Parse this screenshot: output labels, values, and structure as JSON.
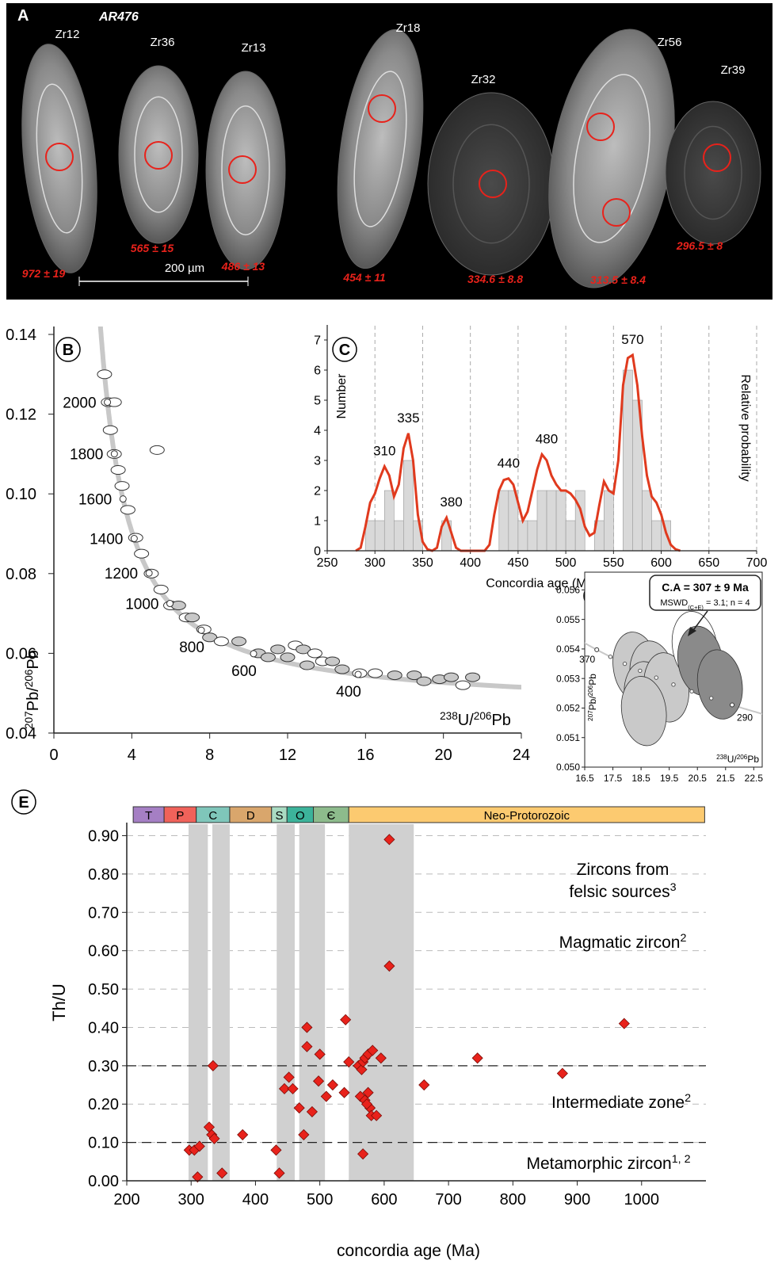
{
  "panel_a": {
    "label": "A",
    "sample": "AR476",
    "scale_bar": "200 µm",
    "grains": [
      {
        "name": "Zr12",
        "age": "972 ± 19"
      },
      {
        "name": "Zr36",
        "age": "565 ± 15"
      },
      {
        "name": "Zr13",
        "age": "486 ± 13"
      },
      {
        "name": "Zr18",
        "age": "454 ± 11"
      },
      {
        "name": "Zr32",
        "age": "334.6 ± 8.8"
      },
      {
        "name": "Zr56",
        "age": "313.5 ± 8.4"
      },
      {
        "name": "Zr39",
        "age": "296.5 ± 8"
      }
    ]
  },
  "chart_data": [
    {
      "type": "concordia",
      "label": "B",
      "xlabel": [
        "238",
        "U/",
        "206",
        "Pb"
      ],
      "ylabel": [
        "207",
        "Pb/",
        "206",
        "Pb"
      ],
      "xlim": [
        0,
        24
      ],
      "xticks": [
        0,
        4,
        8,
        12,
        16,
        20,
        24
      ],
      "ylim": [
        0.04,
        0.14
      ],
      "yticks": [
        0.04,
        0.06,
        0.08,
        {
          "value": 0.1,
          "label": "0.10"
        },
        0.12,
        0.14
      ],
      "concordia_ages": [
        2000,
        1800,
        1600,
        1400,
        1200,
        1000,
        800,
        600,
        400
      ],
      "x": [
        2.6,
        2.8,
        3.1,
        2.9,
        3.1,
        3.3,
        3.5,
        3.8,
        4.2,
        4.5,
        5.3,
        5.0,
        5.5,
        6.0,
        6.4,
        6.8,
        7.1,
        7.7,
        8.0,
        8.6,
        9.5,
        10.5,
        11.0,
        11.5,
        12.0,
        12.4,
        12.8,
        13.0,
        13.4,
        13.8,
        14.3,
        14.8,
        15.7,
        16.5,
        17.5,
        18.5,
        19.0,
        19.8,
        20.4,
        21.0,
        21.5
      ],
      "values": [
        0.13,
        0.123,
        0.123,
        0.116,
        0.11,
        0.106,
        0.102,
        0.096,
        0.089,
        0.085,
        0.111,
        0.08,
        0.076,
        0.072,
        0.072,
        0.069,
        0.069,
        0.066,
        0.064,
        0.063,
        0.063,
        0.06,
        0.059,
        0.061,
        0.059,
        0.062,
        0.061,
        0.057,
        0.06,
        0.058,
        0.058,
        0.056,
        0.055,
        0.055,
        0.0545,
        0.0545,
        0.053,
        0.0535,
        0.054,
        0.052,
        0.054
      ],
      "colors": [
        "#ffffff",
        "#ffffff",
        "#ffffff",
        "#ffffff",
        "#ffffff",
        "#ffffff",
        "#ffffff",
        "#ffffff",
        "#ffffff",
        "#ffffff",
        "#ffffff",
        "#ffffff",
        "#ffffff",
        "#ffffff",
        "#c8c8c8",
        "#ffffff",
        "#c8c8c8",
        "#ffffff",
        "#c8c8c8",
        "#ffffff",
        "#c8c8c8",
        "#c8c8c8",
        "#c8c8c8",
        "#c8c8c8",
        "#c8c8c8",
        "#ffffff",
        "#c8c8c8",
        "#c8c8c8",
        "#ffffff",
        "#ffffff",
        "#c8c8c8",
        "#c8c8c8",
        "#ffffff",
        "#ffffff",
        "#c8c8c8",
        "#c8c8c8",
        "#c8c8c8",
        "#c8c8c8",
        "#c8c8c8",
        "#ffffff",
        "#c8c8c8"
      ]
    },
    {
      "type": "histogram",
      "label": "C",
      "xlabel": "Concordia age (Ma)",
      "ylabel": "Number",
      "y2label": "Relative probability",
      "xlim": [
        250,
        700
      ],
      "xticks": [
        250,
        300,
        350,
        400,
        450,
        500,
        550,
        600,
        650,
        700
      ],
      "ylim": [
        0,
        7.5
      ],
      "yticks": [
        0,
        1,
        2,
        3,
        4,
        5,
        6,
        7
      ],
      "bins": [
        290,
        300,
        310,
        320,
        330,
        340,
        350,
        360,
        370,
        380,
        390,
        400,
        410,
        420,
        430,
        440,
        450,
        460,
        470,
        480,
        490,
        500,
        510,
        520,
        530,
        540,
        550,
        560,
        570,
        580,
        590,
        600,
        610
      ],
      "values": [
        1,
        1,
        2,
        1,
        3,
        1,
        0,
        0,
        1,
        0,
        0,
        0,
        0,
        0,
        2,
        2,
        1,
        1,
        2,
        2,
        2,
        1,
        2,
        0,
        1,
        2,
        0,
        6,
        5,
        2,
        1,
        1
      ],
      "color": "#d9d9d9",
      "probability": {
        "color": "#e03a1e",
        "x": [
          280,
          285,
          290,
          295,
          300,
          305,
          310,
          315,
          320,
          325,
          330,
          335,
          340,
          345,
          350,
          355,
          360,
          365,
          370,
          375,
          380,
          385,
          390,
          395,
          400,
          405,
          410,
          415,
          420,
          425,
          430,
          435,
          440,
          445,
          450,
          455,
          460,
          465,
          470,
          475,
          480,
          485,
          490,
          495,
          500,
          505,
          510,
          515,
          520,
          525,
          530,
          535,
          540,
          545,
          550,
          555,
          560,
          565,
          570,
          575,
          580,
          585,
          590,
          595,
          600,
          605,
          610,
          615,
          620
        ],
        "values": [
          0,
          0.1,
          0.8,
          1.6,
          1.9,
          2.4,
          2.8,
          2.5,
          1.8,
          2.2,
          3.4,
          3.9,
          3.0,
          1.2,
          0.3,
          0.05,
          0,
          0.1,
          0.8,
          1.1,
          0.6,
          0.1,
          0,
          0,
          0,
          0,
          0,
          0,
          0.2,
          1.2,
          2.0,
          2.35,
          2.4,
          2.2,
          1.6,
          1.0,
          1.3,
          2.0,
          2.7,
          3.2,
          3.0,
          2.5,
          2.2,
          2.0,
          2.0,
          1.9,
          1.7,
          1.4,
          0.8,
          0.5,
          0.6,
          1.5,
          2.3,
          2.0,
          1.9,
          3.0,
          5.5,
          6.4,
          6.5,
          5.5,
          3.8,
          2.5,
          1.8,
          1.6,
          1.2,
          0.6,
          0.2,
          0.05,
          0
        ]
      },
      "peaks": [
        310,
        335,
        380,
        440,
        480,
        570
      ],
      "grid": true
    },
    {
      "type": "concordia",
      "label": "D",
      "annotation": "C.A = 307 ± 9 Ma",
      "subannotation": [
        "MSWD",
        "(C+E)",
        " = 3.1; n = 4"
      ],
      "xlabel": [
        "238",
        "U/",
        "206",
        "Pb"
      ],
      "ylabel": [
        "207",
        "Pb/",
        "206",
        "Pb"
      ],
      "xlim": [
        16.5,
        22.8
      ],
      "xticks": [
        16.5,
        17.5,
        18.5,
        19.5,
        20.5,
        21.5,
        22.5
      ],
      "ylim": [
        0.05,
        0.0566
      ],
      "yticks": [
        {
          "value": 0.05,
          "label": "0.050"
        },
        0.051,
        0.052,
        0.053,
        0.054,
        0.055,
        0.056
      ],
      "concordia_ages": [
        370,
        290
      ],
      "x": [
        18.3,
        18.9,
        18.7,
        19.4,
        18.6,
        20.4,
        20.6,
        21.3
      ],
      "values": [
        0.0534,
        0.0531,
        0.0524,
        0.0527,
        0.0519,
        0.0541,
        0.0536,
        0.0528
      ],
      "colors": [
        "#c9c9c9",
        "#c9c9c9",
        "#c9c9c9",
        "#c9c9c9",
        "#c9c9c9",
        "#ffffff",
        "#8a8a8a",
        "#8a8a8a"
      ]
    },
    {
      "type": "scatter",
      "label": "E",
      "xlabel": "concordia age (Ma)",
      "ylabel": "Th/U",
      "xlim": [
        200,
        1100
      ],
      "xticks": [
        200,
        300,
        400,
        500,
        600,
        700,
        800,
        900,
        1000
      ],
      "ylim": [
        0,
        0.93
      ],
      "yticks": [
        {
          "value": 0,
          "label": "0.00"
        },
        {
          "value": 0.1,
          "label": "0.10"
        },
        {
          "value": 0.2,
          "label": "0.20"
        },
        {
          "value": 0.3,
          "label": "0.30"
        },
        {
          "value": 0.4,
          "label": "0.40"
        },
        {
          "value": 0.5,
          "label": "0.50"
        },
        {
          "value": 0.6,
          "label": "0.60"
        },
        {
          "value": 0.7,
          "label": "0.70"
        },
        {
          "value": 0.8,
          "label": "0.80"
        },
        {
          "value": 0.9,
          "label": "0.90"
        }
      ],
      "grid": true,
      "reference_lines": [
        0.1,
        0.3
      ],
      "bands": [
        [
          296,
          326
        ],
        [
          333,
          360
        ],
        [
          433,
          461
        ],
        [
          468,
          508
        ],
        [
          545,
          646
        ]
      ],
      "band_color": "#d0d0d0",
      "periods": [
        {
          "name": "T",
          "start": 210,
          "end": 258,
          "color": "#a57fc4"
        },
        {
          "name": "P",
          "start": 258,
          "end": 308,
          "color": "#f0625a"
        },
        {
          "name": "C",
          "start": 308,
          "end": 360,
          "color": "#7fc6ba"
        },
        {
          "name": "D",
          "start": 360,
          "end": 425,
          "color": "#d9a66c"
        },
        {
          "name": "S",
          "start": 425,
          "end": 449,
          "color": "#a9dbc2"
        },
        {
          "name": "O",
          "start": 449,
          "end": 490,
          "color": "#3cb39a"
        },
        {
          "name": "Є",
          "start": 490,
          "end": 545,
          "color": "#8dbb8c"
        },
        {
          "name": "Neo-Protorozoic",
          "start": 545,
          "end": 1098,
          "color": "#fcca70"
        }
      ],
      "annotations": [
        {
          "text": [
            "Zircons from",
            "felsic sources"
          ],
          "sup": "3"
        },
        {
          "text": [
            "Magmatic zircon"
          ],
          "sup": "2"
        },
        {
          "text": [
            "Intermediate zone"
          ],
          "sup": "2"
        },
        {
          "text": [
            "Metamorphic zircon"
          ],
          "sup": "1, 2"
        }
      ],
      "x": [
        608,
        608,
        973,
        745,
        877,
        662,
        540,
        545,
        560,
        565,
        567,
        570,
        575,
        582,
        595,
        563,
        570,
        575,
        578,
        580,
        588,
        573,
        538,
        567,
        480,
        480,
        500,
        520,
        510,
        498,
        488,
        468,
        475,
        445,
        452,
        458,
        432,
        437,
        380,
        334,
        328,
        332,
        336,
        348,
        310,
        297,
        305,
        313
      ],
      "values": [
        0.89,
        0.56,
        0.41,
        0.32,
        0.28,
        0.25,
        0.42,
        0.31,
        0.3,
        0.29,
        0.31,
        0.32,
        0.33,
        0.34,
        0.32,
        0.22,
        0.21,
        0.23,
        0.19,
        0.17,
        0.17,
        0.2,
        0.23,
        0.07,
        0.4,
        0.35,
        0.33,
        0.25,
        0.22,
        0.26,
        0.18,
        0.19,
        0.12,
        0.24,
        0.27,
        0.24,
        0.08,
        0.02,
        0.12,
        0.3,
        0.14,
        0.12,
        0.11,
        0.02,
        0.01,
        0.08,
        0.08,
        0.09
      ],
      "color": "#e8221b"
    }
  ]
}
